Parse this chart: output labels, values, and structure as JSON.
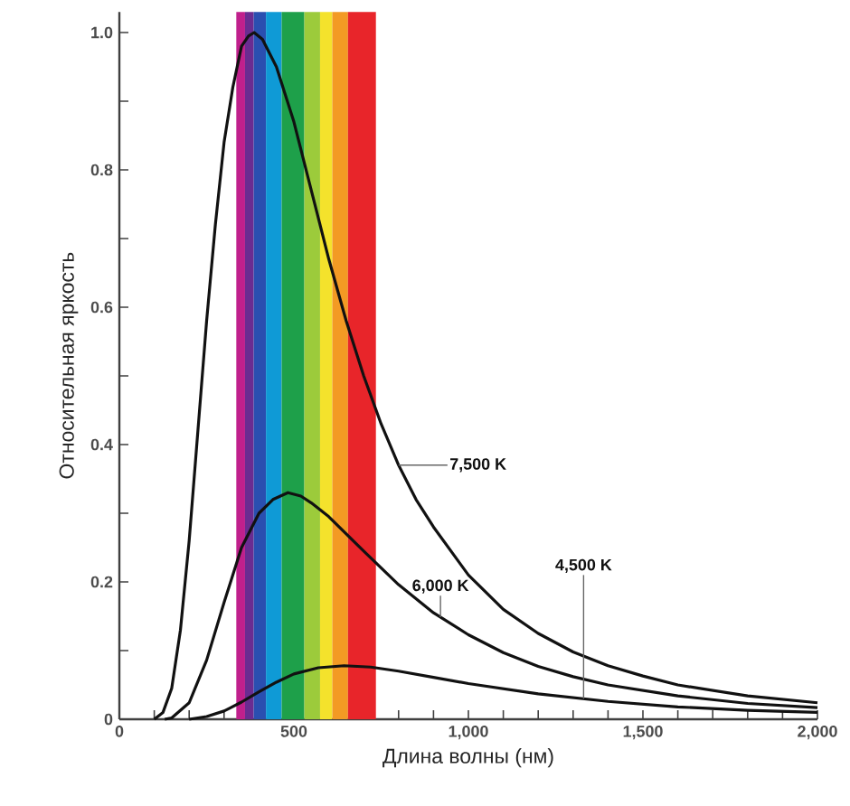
{
  "chart_data": {
    "type": "line",
    "xlabel": "Длина волны (нм)",
    "ylabel": "Относительная яркость",
    "xlim": [
      0,
      2000
    ],
    "ylim": [
      0,
      1.03
    ],
    "xticks": [
      0,
      500,
      {
        "value": 1000,
        "label": "1,000"
      },
      {
        "value": 1500,
        "label": "1,500"
      },
      {
        "value": 2000,
        "label": "2,000"
      }
    ],
    "yticks": [
      0,
      {
        "value": 0.2,
        "label": "0.2"
      },
      {
        "value": 0.4,
        "label": "0.4"
      },
      {
        "value": 0.6,
        "label": "0.6"
      },
      {
        "value": 0.8,
        "label": "0.8"
      },
      {
        "value": 1,
        "label": "1.0"
      }
    ],
    "grid": false,
    "marker": "none",
    "line_style": "solid",
    "bands": [
      {
        "axis": "x",
        "from": 335,
        "to": 360,
        "color": "#c0208c"
      },
      {
        "axis": "x",
        "from": 360,
        "to": 385,
        "color": "#6a2c91"
      },
      {
        "axis": "x",
        "from": 385,
        "to": 420,
        "color": "#2a4fb0"
      },
      {
        "axis": "x",
        "from": 420,
        "to": 465,
        "color": "#0f9ad6"
      },
      {
        "axis": "x",
        "from": 465,
        "to": 530,
        "color": "#1ea04a"
      },
      {
        "axis": "x",
        "from": 530,
        "to": 575,
        "color": "#9ccb3b"
      },
      {
        "axis": "x",
        "from": 575,
        "to": 610,
        "color": "#f4e22c"
      },
      {
        "axis": "x",
        "from": 610,
        "to": 655,
        "color": "#f39a24"
      },
      {
        "axis": "x",
        "from": 655,
        "to": 735,
        "color": "#e8252a"
      }
    ],
    "series": [
      {
        "name": "7,500 K",
        "color": "#111111",
        "x": [
          100,
          125,
          150,
          175,
          200,
          225,
          250,
          275,
          300,
          325,
          350,
          370,
          386,
          410,
          450,
          500,
          550,
          600,
          650,
          700,
          750,
          800,
          850,
          900,
          1000,
          1100,
          1200,
          1300,
          1400,
          1500,
          1600,
          1800,
          2000
        ],
        "values": [
          0,
          0.01,
          0.045,
          0.13,
          0.26,
          0.42,
          0.58,
          0.72,
          0.84,
          0.92,
          0.98,
          0.995,
          1.0,
          0.99,
          0.95,
          0.87,
          0.77,
          0.67,
          0.58,
          0.5,
          0.43,
          0.37,
          0.32,
          0.28,
          0.21,
          0.16,
          0.125,
          0.098,
          0.078,
          0.063,
          0.05,
          0.034,
          0.024
        ]
      },
      {
        "name": "6,000 K",
        "color": "#111111",
        "x": [
          130,
          150,
          200,
          250,
          300,
          350,
          400,
          440,
          483,
          520,
          550,
          600,
          650,
          700,
          800,
          900,
          1000,
          1100,
          1200,
          1300,
          1400,
          1600,
          1800,
          2000
        ],
        "values": [
          0,
          0.002,
          0.024,
          0.086,
          0.17,
          0.25,
          0.3,
          0.32,
          0.33,
          0.325,
          0.315,
          0.295,
          0.27,
          0.245,
          0.196,
          0.155,
          0.123,
          0.097,
          0.077,
          0.062,
          0.05,
          0.034,
          0.023,
          0.017
        ]
      },
      {
        "name": "4,500 K",
        "color": "#111111",
        "x": [
          200,
          250,
          300,
          350,
          400,
          450,
          500,
          570,
          644,
          720,
          800,
          900,
          1000,
          1200,
          1400,
          1600,
          1800,
          2000
        ],
        "values": [
          0,
          0.004,
          0.012,
          0.025,
          0.04,
          0.054,
          0.066,
          0.075,
          0.078,
          0.076,
          0.07,
          0.061,
          0.052,
          0.037,
          0.026,
          0.018,
          0.013,
          0.01
        ]
      }
    ]
  }
}
